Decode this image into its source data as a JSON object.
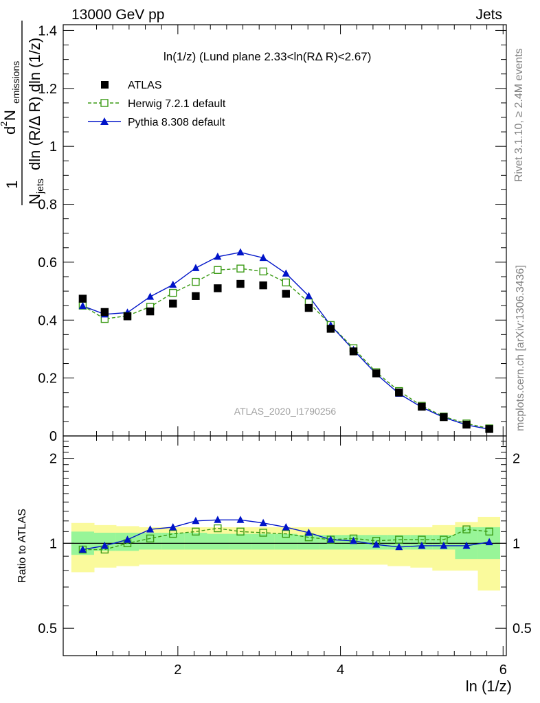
{
  "header": {
    "left": "13000 GeV pp",
    "right": "Jets"
  },
  "side_text": {
    "rivet": "Rivet 3.1.10, ≥ 2.4M events",
    "mcplots": "mcplots.cern.ch [arXiv:1306.3436]"
  },
  "main_panel": {
    "title": "ln(1/z) (Lund plane 2.33<ln(RΔ R)<2.67)",
    "ylabel_lines": [
      "1",
      "N",
      "jets",
      "dln (R/Δ R) dln (1/z)",
      "d",
      "2",
      " N",
      "emissions"
    ],
    "watermark": "ATLAS_2020_I1790256",
    "yticks": [
      "0",
      "0.2",
      "0.4",
      "0.6",
      "0.8",
      "1",
      "1.2",
      "1.4"
    ]
  },
  "ratio_panel": {
    "ylabel": "Ratio to ATLAS",
    "yticks": [
      "0.5",
      "1",
      "2"
    ]
  },
  "xaxis": {
    "label": "ln (1/z)",
    "ticks": [
      "2",
      "4",
      "6"
    ]
  },
  "legend": [
    {
      "label": "ATLAS",
      "color": "#000000",
      "marker": "filled-square"
    },
    {
      "label": "Herwig 7.2.1 default",
      "color": "#3a9a14",
      "marker": "open-square",
      "line": "dashed"
    },
    {
      "label": "Pythia 8.308 default",
      "color": "#0014c8",
      "marker": "filled-triangle",
      "line": "solid"
    }
  ],
  "chart_data": {
    "type": "line",
    "title": "ln(1/z) (Lund plane 2.33<ln(RΔ R)<2.67)",
    "xlabel": "ln (1/z)",
    "ylabel": "1/N_jets d^2 N_emissions / dln(R/ΔR) dln(1/z)",
    "xlim": [
      0.59,
      6.04
    ],
    "ylim": [
      0,
      1.42
    ],
    "ratio_ylim_log": [
      0.4,
      2.4
    ],
    "grid": false,
    "legend_position": "top-left",
    "bin_edges": [
      0.69,
      0.97,
      1.24,
      1.52,
      1.8,
      2.08,
      2.36,
      2.63,
      2.91,
      3.19,
      3.47,
      3.74,
      4.02,
      4.3,
      4.58,
      4.86,
      5.13,
      5.41,
      5.69,
      5.96
    ],
    "x": [
      0.83,
      1.1,
      1.38,
      1.66,
      1.94,
      2.22,
      2.49,
      2.77,
      3.05,
      3.33,
      3.61,
      3.88,
      4.16,
      4.44,
      4.72,
      5.0,
      5.27,
      5.55,
      5.83
    ],
    "series": [
      {
        "name": "ATLAS",
        "values": [
          0.474,
          0.428,
          0.413,
          0.43,
          0.457,
          0.483,
          0.51,
          0.525,
          0.52,
          0.491,
          0.442,
          0.37,
          0.292,
          0.216,
          0.15,
          0.101,
          0.065,
          0.039,
          0.024
        ]
      },
      {
        "name": "Herwig 7.2.1 default",
        "values": [
          0.45,
          0.404,
          0.415,
          0.446,
          0.494,
          0.532,
          0.573,
          0.578,
          0.568,
          0.53,
          0.461,
          0.383,
          0.303,
          0.22,
          0.155,
          0.104,
          0.067,
          0.043,
          0.026
        ]
      },
      {
        "name": "Pythia 8.308 default",
        "values": [
          0.449,
          0.42,
          0.426,
          0.481,
          0.522,
          0.58,
          0.619,
          0.634,
          0.615,
          0.561,
          0.483,
          0.382,
          0.297,
          0.214,
          0.146,
          0.099,
          0.064,
          0.038,
          0.023
        ]
      }
    ],
    "ratios": [
      {
        "name": "Herwig 7.2.1 default",
        "values": [
          0.95,
          0.95,
          1.0,
          1.04,
          1.08,
          1.1,
          1.13,
          1.1,
          1.09,
          1.08,
          1.05,
          1.03,
          1.04,
          1.02,
          1.03,
          1.03,
          1.03,
          1.12,
          1.1
        ]
      },
      {
        "name": "Pythia 8.308 default",
        "values": [
          0.95,
          0.98,
          1.03,
          1.12,
          1.14,
          1.2,
          1.21,
          1.21,
          1.18,
          1.14,
          1.09,
          1.03,
          1.02,
          0.99,
          0.97,
          0.98,
          0.98,
          0.98,
          1.01
        ]
      }
    ],
    "uncertainty_bands": {
      "inner_green": {
        "lo": [
          0.91,
          0.94,
          0.94,
          0.95,
          0.95,
          0.95,
          0.95,
          0.95,
          0.95,
          0.95,
          0.95,
          0.95,
          0.95,
          0.95,
          0.95,
          0.95,
          0.95,
          0.88,
          0.88
        ],
        "hi": [
          1.1,
          1.09,
          1.09,
          1.09,
          1.09,
          1.09,
          1.08,
          1.08,
          1.08,
          1.08,
          1.07,
          1.07,
          1.07,
          1.07,
          1.07,
          1.07,
          1.07,
          1.14,
          1.14
        ]
      },
      "outer_yellow": {
        "lo": [
          0.79,
          0.82,
          0.83,
          0.84,
          0.84,
          0.84,
          0.84,
          0.84,
          0.84,
          0.84,
          0.84,
          0.84,
          0.84,
          0.84,
          0.83,
          0.82,
          0.8,
          0.8,
          0.68
        ],
        "hi": [
          1.18,
          1.16,
          1.15,
          1.14,
          1.14,
          1.14,
          1.14,
          1.14,
          1.14,
          1.14,
          1.14,
          1.14,
          1.14,
          1.14,
          1.14,
          1.14,
          1.16,
          1.19,
          1.24
        ]
      }
    },
    "colors": {
      "data": "#000000",
      "herwig": "#3a9a14",
      "pythia": "#0014c8",
      "band_inner": "#98f598",
      "band_outer": "#fafa9c"
    }
  }
}
